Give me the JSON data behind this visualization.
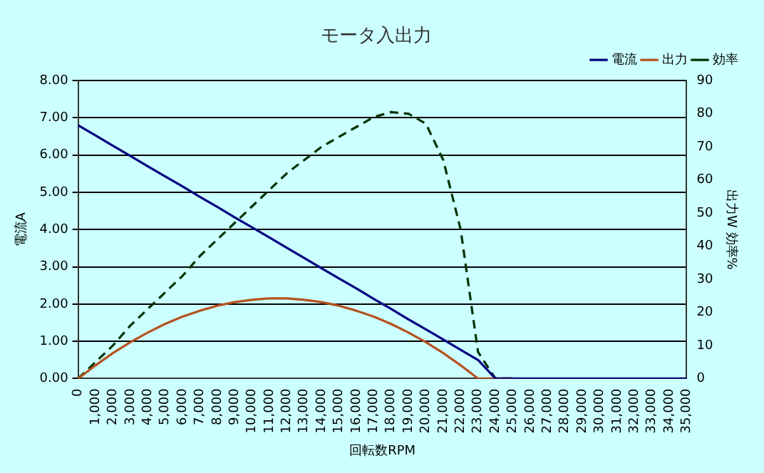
{
  "chart_data": {
    "type": "line",
    "title": "モータ入出力",
    "xlabel": "回転数RPM",
    "ylabel": "電流A",
    "y2label": "出力W 効率%",
    "categories": [
      "0",
      "1,000",
      "2,000",
      "3,000",
      "4,000",
      "5,000",
      "6,000",
      "7,000",
      "8,000",
      "9,000",
      "10,000",
      "11,000",
      "12,000",
      "13,000",
      "14,000",
      "15,000",
      "16,000",
      "17,000",
      "18,000",
      "19,000",
      "20,000",
      "21,000",
      "22,000",
      "23,000",
      "24,000",
      "25,000",
      "26,000",
      "27,000",
      "28,000",
      "29,000",
      "30,000",
      "31,000",
      "32,000",
      "33,000",
      "34,000",
      "35,000"
    ],
    "series": [
      {
        "name": "電流",
        "color": "#000080",
        "line_style": "solid",
        "values": [
          6.8,
          6.53,
          6.25,
          5.98,
          5.7,
          5.43,
          5.16,
          4.88,
          4.61,
          4.33,
          4.06,
          3.79,
          3.51,
          3.24,
          2.96,
          2.69,
          2.42,
          2.14,
          1.87,
          1.59,
          1.32,
          1.05,
          0.77,
          0.5,
          0,
          0,
          0,
          0,
          0,
          0,
          0,
          0,
          0,
          0,
          0,
          0
        ]
      },
      {
        "name": "出力",
        "color": "#b5501e",
        "axis": "y2",
        "line_style": "solid",
        "values": [
          0,
          4,
          7.7,
          11,
          13.9,
          16.5,
          18.7,
          20.5,
          22,
          23.1,
          23.8,
          24.2,
          24.2,
          23.8,
          23.1,
          22,
          20.5,
          18.7,
          16.5,
          13.9,
          11,
          7.7,
          4,
          0,
          0,
          0,
          null,
          null,
          null,
          null,
          null,
          null,
          null,
          null,
          null,
          null
        ]
      },
      {
        "name": "効率",
        "color": "#003300",
        "axis": "y2",
        "line_style": "dashed",
        "values": [
          0,
          5,
          10,
          16,
          21,
          26,
          31,
          37,
          42,
          47,
          52,
          57,
          62,
          66,
          70,
          73,
          76,
          79,
          80.5,
          80,
          77,
          66,
          45,
          8,
          0,
          0,
          null,
          null,
          null,
          null,
          null,
          null,
          null,
          null,
          null,
          null
        ]
      }
    ],
    "ylim": [
      0,
      8
    ],
    "yticks": [
      {
        "value": 0,
        "label": "0.00"
      },
      {
        "value": 1,
        "label": "1.00"
      },
      {
        "value": 2,
        "label": "2.00"
      },
      {
        "value": 3,
        "label": "3.00"
      },
      {
        "value": 4,
        "label": "4.00"
      },
      {
        "value": 5,
        "label": "5.00"
      },
      {
        "value": 6,
        "label": "6.00"
      },
      {
        "value": 7,
        "label": "7.00"
      },
      {
        "value": 8,
        "label": "8.00"
      }
    ],
    "y2lim": [
      0,
      90
    ],
    "y2ticks": [
      0,
      10,
      20,
      30,
      40,
      50,
      60,
      70,
      80,
      90
    ],
    "grid": "y",
    "legend": "top right",
    "marker": "none"
  }
}
